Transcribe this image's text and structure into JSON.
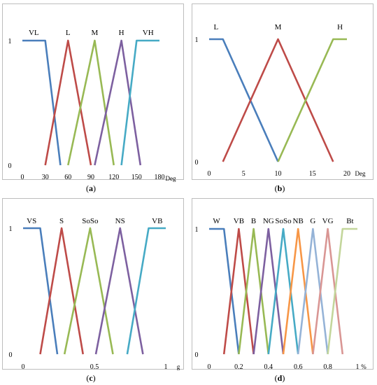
{
  "chart_data": [
    {
      "type": "line",
      "caption": "a",
      "xunit": "Deg",
      "xlim": [
        0,
        180
      ],
      "ylim": [
        0,
        1
      ],
      "xticks": [
        0,
        30,
        60,
        90,
        120,
        150,
        180
      ],
      "yticks": [
        0,
        1
      ],
      "series": [
        {
          "name": "VL",
          "color": "#4a7ebb",
          "points": [
            [
              0,
              1
            ],
            [
              30,
              1
            ],
            [
              50,
              0
            ]
          ]
        },
        {
          "name": "L",
          "color": "#be4b48",
          "points": [
            [
              30,
              0
            ],
            [
              60,
              1
            ],
            [
              90,
              0
            ]
          ]
        },
        {
          "name": "M",
          "color": "#98b954",
          "points": [
            [
              60,
              0
            ],
            [
              95,
              1
            ],
            [
              120,
              0
            ]
          ]
        },
        {
          "name": "H",
          "color": "#7d60a0",
          "points": [
            [
              95,
              0
            ],
            [
              130,
              1
            ],
            [
              155,
              0
            ]
          ]
        },
        {
          "name": "VH",
          "color": "#46aac5",
          "points": [
            [
              130,
              0
            ],
            [
              150,
              1
            ],
            [
              180,
              1
            ]
          ]
        }
      ]
    },
    {
      "type": "line",
      "caption": "b",
      "xunit": "Deg",
      "xlim": [
        0,
        20
      ],
      "ylim": [
        0,
        1
      ],
      "xticks": [
        0,
        5,
        10,
        15,
        20
      ],
      "yticks": [
        0,
        1
      ],
      "series": [
        {
          "name": "L",
          "color": "#4a7ebb",
          "points": [
            [
              0,
              1
            ],
            [
              2,
              1
            ],
            [
              10,
              0
            ]
          ]
        },
        {
          "name": "M",
          "color": "#be4b48",
          "points": [
            [
              2,
              0
            ],
            [
              10,
              1
            ],
            [
              18,
              0
            ]
          ]
        },
        {
          "name": "H",
          "color": "#98b954",
          "points": [
            [
              10,
              0
            ],
            [
              18,
              1
            ],
            [
              20,
              1
            ]
          ]
        }
      ]
    },
    {
      "type": "line",
      "caption": "c",
      "xunit": "g",
      "xlim": [
        0,
        1
      ],
      "ylim": [
        0,
        1
      ],
      "xticks": [
        0,
        0.5,
        1
      ],
      "yticks": [
        0,
        1
      ],
      "series": [
        {
          "name": "VS",
          "color": "#4a7ebb",
          "points": [
            [
              0,
              1
            ],
            [
              0.12,
              1
            ],
            [
              0.24,
              0
            ]
          ]
        },
        {
          "name": "S",
          "color": "#be4b48",
          "points": [
            [
              0.12,
              0
            ],
            [
              0.27,
              1
            ],
            [
              0.42,
              0
            ]
          ]
        },
        {
          "name": "SoSo",
          "color": "#98b954",
          "points": [
            [
              0.29,
              0
            ],
            [
              0.47,
              1
            ],
            [
              0.63,
              0
            ]
          ]
        },
        {
          "name": "NS",
          "color": "#7d60a0",
          "points": [
            [
              0.51,
              0
            ],
            [
              0.68,
              1
            ],
            [
              0.84,
              0
            ]
          ]
        },
        {
          "name": "VB",
          "color": "#46aac5",
          "points": [
            [
              0.73,
              0
            ],
            [
              0.88,
              1
            ],
            [
              1,
              1
            ]
          ]
        }
      ]
    },
    {
      "type": "line",
      "caption": "d",
      "xunit": "%",
      "xlim": [
        0,
        1
      ],
      "ylim": [
        0,
        1
      ],
      "xticks": [
        0,
        0.2,
        0.4,
        0.6,
        0.8,
        1
      ],
      "xticklabels": [
        "0",
        "0.2",
        "0.4",
        "0.6",
        "0.8",
        "1"
      ],
      "yticks": [
        0,
        1
      ],
      "series": [
        {
          "name": "W",
          "color": "#4a7ebb",
          "points": [
            [
              0,
              1
            ],
            [
              0.1,
              1
            ],
            [
              0.2,
              0
            ]
          ]
        },
        {
          "name": "VB",
          "color": "#be4b48",
          "points": [
            [
              0.1,
              0
            ],
            [
              0.2,
              1
            ],
            [
              0.3,
              0
            ]
          ]
        },
        {
          "name": "B",
          "color": "#98b954",
          "points": [
            [
              0.2,
              0
            ],
            [
              0.3,
              1
            ],
            [
              0.4,
              0
            ]
          ]
        },
        {
          "name": "NG",
          "color": "#7d60a0",
          "points": [
            [
              0.3,
              0
            ],
            [
              0.4,
              1
            ],
            [
              0.5,
              0
            ]
          ]
        },
        {
          "name": "SoSo",
          "color": "#46aac5",
          "points": [
            [
              0.4,
              0
            ],
            [
              0.5,
              1
            ],
            [
              0.6,
              0
            ]
          ]
        },
        {
          "name": "NB",
          "color": "#f79646",
          "points": [
            [
              0.5,
              0
            ],
            [
              0.6,
              1
            ],
            [
              0.7,
              0
            ]
          ]
        },
        {
          "name": "G",
          "color": "#95b3d7",
          "points": [
            [
              0.6,
              0
            ],
            [
              0.7,
              1
            ],
            [
              0.8,
              0
            ]
          ]
        },
        {
          "name": "VG",
          "color": "#d99694",
          "points": [
            [
              0.7,
              0
            ],
            [
              0.8,
              1
            ],
            [
              0.9,
              0
            ]
          ]
        },
        {
          "name": "Bt",
          "color": "#c3d69b",
          "points": [
            [
              0.8,
              0
            ],
            [
              0.9,
              1
            ],
            [
              1,
              1
            ]
          ]
        }
      ]
    }
  ]
}
